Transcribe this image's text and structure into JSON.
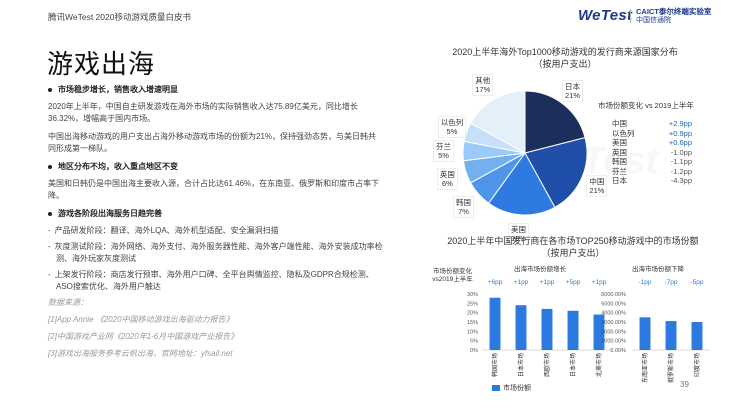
{
  "header": {
    "left_text": "腾讯WeTest   2020移动游戏质量白皮书",
    "logo_wetest": "WeTest",
    "logo_caict": "CAICT泰尔终端实验室",
    "logo_caict_sub": "中国信通院"
  },
  "page_title": "游戏出海",
  "sections": [
    {
      "heading": "市场稳步增长，销售收入增速明显",
      "paragraphs": [
        "2020年上半年，中国自主研发游戏在海外市场的实际销售收入达75.89亿美元，同比增长36.32%，增幅高于国内市场。",
        "中国出海移动游戏的用户支出占海外移动游戏市场的份额为21%，保持强劲态势，与美日韩共同形成第一梯队。"
      ]
    },
    {
      "heading": "地区分布不均，收入重点地区不变",
      "paragraphs": [
        "美国和日韩仍是中国出海主要收入源，合计占比达61.46%，在东南亚、俄罗斯和印度市占率下降。"
      ]
    },
    {
      "heading": "游戏各阶段出海服务日趋完善",
      "items": [
        "产品研发阶段：翻译、海外LQA、海外机型适配、安全漏洞扫描",
        "灰度测试阶段：海外网络、海外支付、海外服务器性能、海外客户端性能、海外安装成功率检测、海外玩家灰度测试",
        "上架发行阶段：商店发行预审、海外用户口碑、全平台舆情监控、隐私及GDPR合规检测、ASO搜索优化、海外用户触达"
      ]
    }
  ],
  "sources": {
    "title": "数据来源：",
    "items": [
      "[1]App Annie 《2020中国移动游戏出海驱动力报告》",
      "[2]中国游戏产业网《2020年1-6月中国游戏产业报告》",
      "[3]游戏出海服务参考云帆出海，官网地址：yfsail.net"
    ]
  },
  "pie_chart": {
    "title_line1": "2020上半年海外Top1000移动游戏的发行商来源国家分布",
    "title_line2": "（按用户支出）",
    "change_title": "市场份额变化 vs 2019上半年",
    "changes": [
      {
        "name": "中国",
        "value": "+2.9pp",
        "sign": "pos"
      },
      {
        "name": "以色列",
        "value": "+0.9pp",
        "sign": "pos"
      },
      {
        "name": "美国",
        "value": "+0.6pp",
        "sign": "pos"
      },
      {
        "name": "英国",
        "value": "-1.0pp",
        "sign": "neg"
      },
      {
        "name": "韩国",
        "value": "-1.1pp",
        "sign": "neg"
      },
      {
        "name": "芬兰",
        "value": "-1.2pp",
        "sign": "neg"
      },
      {
        "name": "日本",
        "value": "-4.3pp",
        "sign": "neg"
      }
    ]
  },
  "bar_chart": {
    "title_line1": "2020上半年中国发行商在各市场TOP250移动游戏中的市场份额",
    "title_line2": "（按用户支出）",
    "change_label": "市场份额变化vs2019上半年",
    "group1_title": "出海市场份额增长",
    "group2_title": "出海市场份额下降",
    "group1_changes": [
      "+6pp",
      "+1pp",
      "+1pp",
      "+5pp",
      "+1pp"
    ],
    "group2_changes": [
      "-1pp",
      "-7pp",
      "-5pp"
    ],
    "legend": "市场份额"
  },
  "chart_data": [
    {
      "type": "pie",
      "categories": [
        "日本",
        "中国",
        "美国",
        "韩国",
        "英国",
        "芬兰",
        "以色列",
        "其他"
      ],
      "values": [
        21,
        21,
        18,
        7,
        6,
        5,
        5,
        17
      ],
      "unit": "%",
      "colors": [
        "#1c2f5c",
        "#1f4fa8",
        "#2f7ae0",
        "#4e95ea",
        "#74b0f0",
        "#9ccaf6",
        "#c6e0fa",
        "#e3eff9"
      ],
      "title": "2020上半年海外Top1000移动游戏的发行商来源国家分布（按用户支出）"
    },
    {
      "type": "bar",
      "categories": [
        "韩国市场",
        "日本市场",
        "西欧市场",
        "日本市场",
        "北美市场"
      ],
      "values": [
        28,
        24,
        22,
        21,
        19
      ],
      "ylim": [
        0,
        30
      ],
      "yticks": [
        "0%",
        "5%",
        "10%",
        "15%",
        "20%",
        "25%",
        "30%"
      ],
      "title": "出海市场份额增长",
      "legend": "市场份额"
    },
    {
      "type": "bar",
      "categories": [
        "东南亚市场",
        "俄罗斯市场",
        "印度市场"
      ],
      "values": [
        3500,
        3100,
        3000
      ],
      "ylim": [
        0,
        6000
      ],
      "yticks": [
        "0.00%",
        "1000.00%",
        "2000.00%",
        "3000.00%",
        "4000.00%",
        "5000.00%",
        "6000.00%"
      ],
      "title": "出海市场份额下降"
    }
  ],
  "page_number": "39",
  "watermark": "WeTest"
}
